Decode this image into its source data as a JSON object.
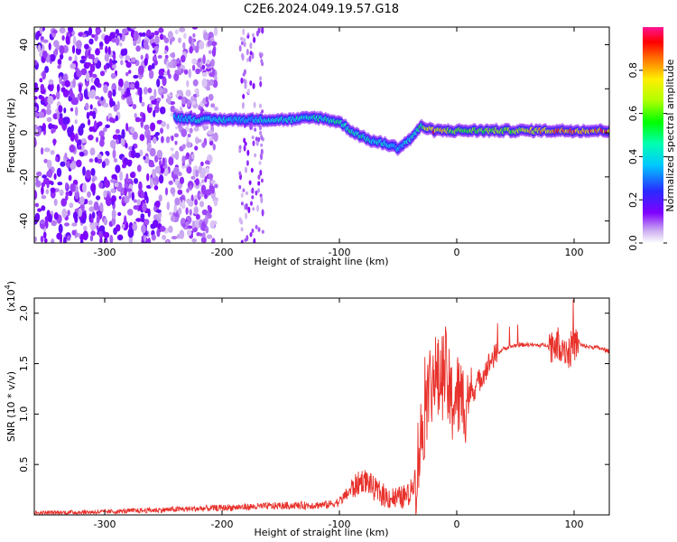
{
  "title": "C2E6.2024.049.19.57.G18",
  "chart_data": [
    {
      "type": "heatmap",
      "xlabel": "Height of straight line (km)",
      "ylabel": "Frequency (Hz)",
      "xlim": [
        -360,
        130
      ],
      "ylim": [
        -50,
        48
      ],
      "xticks": [
        -300,
        -200,
        -100,
        0,
        100
      ],
      "xtick_labels": [
        "-300",
        "-200",
        "-100",
        "0",
        "100"
      ],
      "yticks": [
        -40,
        -20,
        0,
        20,
        40
      ],
      "ytick_labels": [
        "-40",
        "-20",
        "0",
        "20",
        "40"
      ],
      "colorbar": {
        "label": "Normalized spectral amplitude",
        "range": [
          0.0,
          1.0
        ],
        "ticks": [
          0.0,
          0.2,
          0.4,
          0.6,
          0.8
        ],
        "tick_labels": [
          "0.0",
          "0.2",
          "0.4",
          "0.6",
          "0.8"
        ],
        "colormap": "rainbow (white-violet-blue-cyan-green-yellow-red-magenta)"
      },
      "frequency_track": {
        "height_km": [
          -240,
          -220,
          -200,
          -180,
          -160,
          -140,
          -120,
          -100,
          -90,
          -80,
          -70,
          -60,
          -50,
          -40,
          -30,
          -20,
          0,
          20,
          40,
          60,
          80,
          100,
          130
        ],
        "frequency_hz": [
          7,
          6,
          6,
          6,
          6,
          6,
          7,
          5,
          1,
          -2,
          -4,
          -5,
          -7,
          -3,
          3,
          1,
          1,
          1,
          1,
          1,
          1,
          1,
          1
        ],
        "amplitude": [
          0.35,
          0.4,
          0.4,
          0.35,
          0.4,
          0.4,
          0.45,
          0.45,
          0.45,
          0.45,
          0.4,
          0.45,
          0.35,
          0.4,
          0.5,
          0.85,
          0.55,
          0.6,
          0.6,
          0.7,
          0.8,
          0.85,
          0.85
        ]
      },
      "noise_region_km": [
        -360,
        -215
      ]
    },
    {
      "type": "line",
      "xlabel": "Height of straight line (km)",
      "ylabel": "SNR (10 * v/v)",
      "y_multiplier": "(x10",
      "y_multiplier_exp": "4",
      "y_multiplier_close": ")",
      "xlim": [
        -360,
        130
      ],
      "ylim": [
        0,
        2.15
      ],
      "xticks": [
        -300,
        -200,
        -100,
        0,
        100
      ],
      "xtick_labels": [
        "-300",
        "-200",
        "-100",
        "0",
        "100"
      ],
      "yticks": [
        0.5,
        1.0,
        1.5,
        2.0
      ],
      "ytick_labels": [
        "0.5",
        "1.0",
        "1.5",
        "2.0"
      ],
      "series": [
        {
          "color": "#e8312b",
          "x": [
            -360,
            -300,
            -250,
            -200,
            -150,
            -110,
            -100,
            -90,
            -80,
            -75,
            -70,
            -60,
            -50,
            -40,
            -35,
            -30,
            -25,
            -20,
            -15,
            -10,
            -5,
            0,
            5,
            10,
            15,
            20,
            30,
            40,
            50,
            60,
            70,
            80,
            90,
            95,
            100,
            110,
            120,
            130
          ],
          "y": [
            0.02,
            0.03,
            0.05,
            0.07,
            0.09,
            0.1,
            0.13,
            0.25,
            0.35,
            0.32,
            0.25,
            0.18,
            0.16,
            0.2,
            0.4,
            0.8,
            1.2,
            1.4,
            1.3,
            1.45,
            1.1,
            1.2,
            1.1,
            1.2,
            1.25,
            1.35,
            1.55,
            1.65,
            1.68,
            1.69,
            1.68,
            1.69,
            1.7,
            1.6,
            1.7,
            1.67,
            1.66,
            1.62
          ]
        }
      ]
    }
  ]
}
